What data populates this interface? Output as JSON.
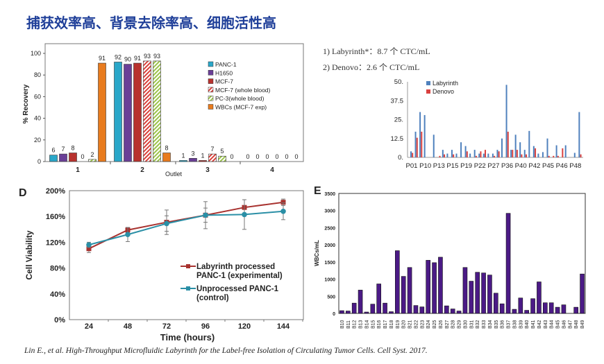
{
  "title": "捕获效率高、背景去除率高、细胞活性高",
  "notes": [
    "1)  Labyrinth*：8.7 个 CTC/mL",
    "2)  Denovo：2.6 个 CTC/mL"
  ],
  "citation": "Lin E., et al. High-Throughput Microfluidic Labyrinth for the Label-free Isolation of Circulating Tumor Cells. Cell Syst. 2017.",
  "chart_data": [
    {
      "type": "bar",
      "ylabel": "% Recovery",
      "xlabel": "Outlet",
      "categories": [
        "1",
        "2",
        "3",
        "4"
      ],
      "ylim": [
        0,
        110
      ],
      "yticks": [
        "0",
        "20",
        "40",
        "60",
        "80",
        "100"
      ],
      "legend": "top-right",
      "series": [
        {
          "name": "PANC-1",
          "values": [
            6,
            92,
            1,
            0
          ],
          "color": "#2aa7c9"
        },
        {
          "name": "H1650",
          "values": [
            7,
            90,
            3,
            0
          ],
          "color": "#6a3f97"
        },
        {
          "name": "MCF-7",
          "values": [
            8,
            91,
            1,
            0
          ],
          "color": "#b8322e"
        },
        {
          "name": "MCF-7 (whole blood)",
          "values": [
            0,
            93,
            7,
            0
          ],
          "color": "#d9403a",
          "pattern": "hatch"
        },
        {
          "name": "PC-3(whole blood)",
          "values": [
            2,
            93,
            5,
            0
          ],
          "color": "#9bc34a",
          "pattern": "hatch"
        },
        {
          "name": "WBCs (MCF-7 exp)",
          "values": [
            91,
            8,
            0,
            0
          ],
          "color": "#e87b1e"
        }
      ]
    },
    {
      "type": "bar",
      "ylim": [
        0,
        50
      ],
      "yticks": [
        "0.",
        "12.5",
        "25.",
        "37.5",
        "50."
      ],
      "legend": "top-left",
      "categories": [
        "P01",
        "",
        "",
        "P10",
        "",
        "",
        "P13",
        "",
        "",
        "P15",
        "",
        "",
        "P19",
        "",
        "",
        "P22",
        "",
        "",
        "P27",
        "",
        "",
        "P36",
        "",
        "",
        "P40",
        "",
        "",
        "P42",
        "",
        "",
        "P45",
        "",
        "",
        "P46",
        "",
        "",
        "P48",
        ""
      ],
      "series": [
        {
          "name": "Labyrinth",
          "color": "#4f81bd",
          "values": [
            4,
            17,
            30,
            28,
            0,
            15,
            0,
            5,
            2.5,
            5,
            2.5,
            10,
            7.5,
            2.5,
            5,
            2.5,
            2.5,
            2.5,
            2.5,
            5,
            12.5,
            48,
            5,
            15,
            10,
            5,
            17.5,
            7.5,
            2.5,
            3.5,
            12.5,
            0,
            8,
            0,
            8,
            0,
            3,
            30
          ]
        },
        {
          "name": "Denovo",
          "color": "#d9413f",
          "values": [
            3,
            13,
            17,
            0,
            0,
            0,
            1,
            2,
            0,
            2,
            0,
            0,
            4,
            0,
            1,
            4,
            5,
            0,
            1,
            4,
            0,
            17,
            5,
            5,
            2,
            2,
            0,
            6,
            0,
            0,
            1,
            1,
            1,
            6,
            0,
            0,
            0,
            2
          ]
        }
      ]
    },
    {
      "type": "line",
      "panel": "D",
      "xlabel": "Time (hours)",
      "ylabel": "Cell Viability",
      "x": [
        24,
        48,
        72,
        96,
        120,
        144
      ],
      "ylim": [
        0,
        200
      ],
      "yticks": [
        "0%",
        "40%",
        "80%",
        "120%",
        "160%",
        "200%"
      ],
      "legend": "bottom-right",
      "series": [
        {
          "name": "Labyrinth processed PANC-1 (experimental)",
          "color": "#a8322f",
          "marker": "square",
          "values": [
            110,
            139,
            151,
            162,
            174,
            182
          ],
          "error": [
            6,
            4,
            19,
            21,
            12,
            5
          ]
        },
        {
          "name": "Unprocessed PANC-1 (control)",
          "color": "#2a8fa6",
          "marker": "circle",
          "values": [
            116,
            132,
            149,
            162,
            163,
            168
          ],
          "error": [
            4,
            11,
            12,
            11,
            23,
            13
          ]
        }
      ]
    },
    {
      "type": "bar",
      "panel": "E",
      "ylabel": "WBCs/mL",
      "ylim": [
        0,
        3500
      ],
      "yticks": [
        "0",
        "500",
        "1000",
        "1500",
        "2000",
        "2500",
        "3000",
        "3500"
      ],
      "color": "#4b1a86",
      "categories": [
        "B10",
        "B11",
        "B12",
        "B13",
        "B14",
        "B15",
        "B16",
        "B17",
        "B18",
        "B19",
        "B20",
        "B21",
        "B22",
        "B23",
        "B24",
        "B25",
        "B26",
        "B27",
        "B28",
        "B29",
        "B30",
        "B31",
        "B32",
        "B33",
        "B34",
        "B35",
        "B36",
        "B37",
        "B38",
        "B39",
        "B40",
        "B41",
        "B42",
        "B43",
        "B44",
        "B45",
        "B46",
        "B47",
        "B48",
        "B49"
      ],
      "values": [
        80,
        70,
        300,
        680,
        40,
        270,
        860,
        300,
        50,
        1830,
        1080,
        1340,
        230,
        190,
        1550,
        1480,
        1640,
        220,
        130,
        70,
        1340,
        940,
        1200,
        1180,
        1120,
        590,
        280,
        2920,
        120,
        450,
        90,
        430,
        920,
        310,
        310,
        180,
        250,
        0,
        180,
        1150
      ]
    }
  ]
}
